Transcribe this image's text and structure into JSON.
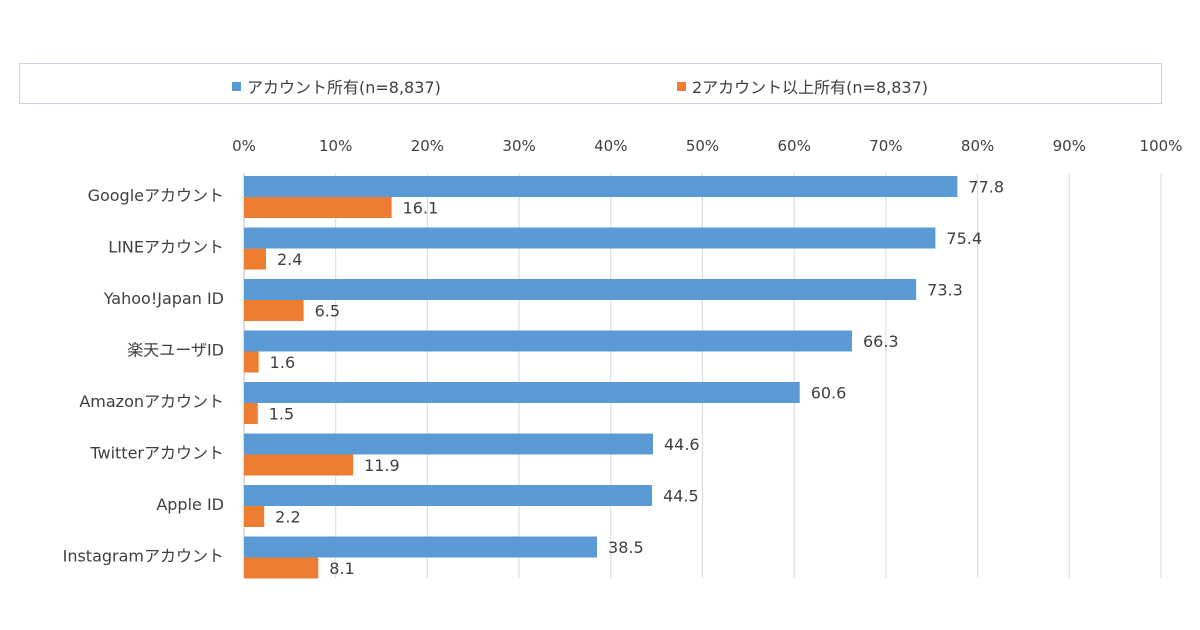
{
  "chart_data": {
    "type": "bar",
    "orientation": "horizontal",
    "categories": [
      "Googleアカウント",
      "LINEアカウント",
      "Yahoo!Japan ID",
      "楽天ユーザID",
      "Amazonアカウント",
      "Twitterアカウント",
      "Apple ID",
      "Instagramアカウント"
    ],
    "series": [
      {
        "name": "アカウント所有(n=8,837)",
        "color": "#5b9bd5",
        "values": [
          77.8,
          75.4,
          73.3,
          66.3,
          60.6,
          44.6,
          44.5,
          38.5
        ],
        "labels": [
          "77.8",
          "75.4",
          "73.3",
          "66.3",
          "60.6",
          "44.6",
          "44.5",
          "38.5"
        ]
      },
      {
        "name": "2アカウント以上所有(n=8,837)",
        "color": "#ed7d31",
        "values": [
          16.1,
          2.4,
          6.5,
          1.6,
          1.5,
          11.9,
          2.2,
          8.1
        ],
        "labels": [
          "16.1",
          "2.4",
          "6.5",
          "1.6",
          "1.5",
          "11.9",
          "2.2",
          "8.1"
        ]
      }
    ],
    "xlim": [
      0,
      100
    ],
    "x_ticks": [
      "0%",
      "10%",
      "20%",
      "30%",
      "40%",
      "50%",
      "60%",
      "70%",
      "80%",
      "90%",
      "100%"
    ],
    "grid": true,
    "legend": "top"
  }
}
